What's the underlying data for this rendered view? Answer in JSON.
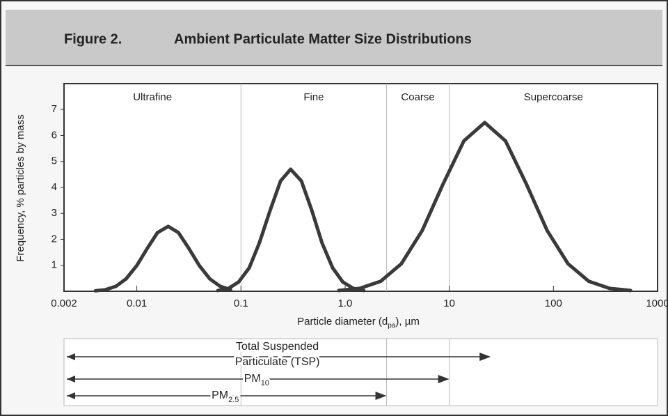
{
  "chart_data": {
    "type": "line",
    "figure_label": "Figure 2.",
    "title": "Ambient Particulate Matter Size Distributions",
    "ylabel": "Frequency, % particles by mass",
    "xlabel": {
      "text": "Particle diameter (d",
      "sub": "pa",
      "after": "), µm"
    },
    "xscale": "log",
    "xlim": [
      0.002,
      1000
    ],
    "xticks": [
      0.002,
      0.01,
      0.1,
      {
        "value": 1,
        "label": "1.0"
      },
      10,
      100,
      1000
    ],
    "ylim": [
      0,
      8
    ],
    "yticks": [
      1,
      2,
      3,
      4,
      5,
      6,
      7
    ],
    "regions": [
      {
        "label": "Ultrafine",
        "from": 0.002,
        "to": 0.1
      },
      {
        "label": "Fine",
        "from": 0.1,
        "to": 2.5
      },
      {
        "label": "Coarse",
        "from": 2.5,
        "to": 10
      },
      {
        "label": "Supercoarse",
        "from": 10,
        "to": 1000
      }
    ],
    "series": [
      {
        "color": "#3a3a3a",
        "x": [
          0.004,
          0.005,
          0.0063,
          0.0079,
          0.01,
          0.0126,
          0.0158,
          0.02,
          0.0251,
          0.0316,
          0.0398,
          0.0501,
          0.0631,
          0.0794
        ],
        "values": [
          0.02,
          0.06,
          0.19,
          0.48,
          0.99,
          1.65,
          2.26,
          2.5,
          2.26,
          1.65,
          0.99,
          0.48,
          0.19,
          0.06
        ]
      },
      {
        "color": "#3a3a3a",
        "x": [
          0.06,
          0.076,
          0.095,
          0.12,
          0.15,
          0.19,
          0.24,
          0.3,
          0.38,
          0.48,
          0.6,
          0.76,
          0.95,
          1.2,
          1.51
        ],
        "values": [
          0.03,
          0.11,
          0.36,
          0.9,
          1.86,
          3.1,
          4.25,
          4.7,
          4.25,
          3.1,
          1.86,
          0.9,
          0.36,
          0.11,
          0.03
        ]
      },
      {
        "color": "#3a3a3a",
        "x": [
          0.87,
          1.38,
          2.19,
          3.47,
          5.5,
          8.71,
          13.8,
          21.9,
          34.7,
          55,
          87.1,
          138,
          219,
          347,
          550
        ],
        "values": [
          0.03,
          0.11,
          0.38,
          1.06,
          2.34,
          4.13,
          5.79,
          6.5,
          5.79,
          4.13,
          2.34,
          1.06,
          0.38,
          0.11,
          0.03
        ]
      }
    ],
    "size_ranges": [
      {
        "lines": [
          "Total Suspended",
          "Particulate (TSP)"
        ],
        "from": 0.002,
        "to": 25
      },
      {
        "label": "PM",
        "sub": "10",
        "from": 0.002,
        "to": 10
      },
      {
        "label": "PM",
        "sub": "2.5",
        "from": 0.002,
        "to": 2.5
      }
    ]
  }
}
